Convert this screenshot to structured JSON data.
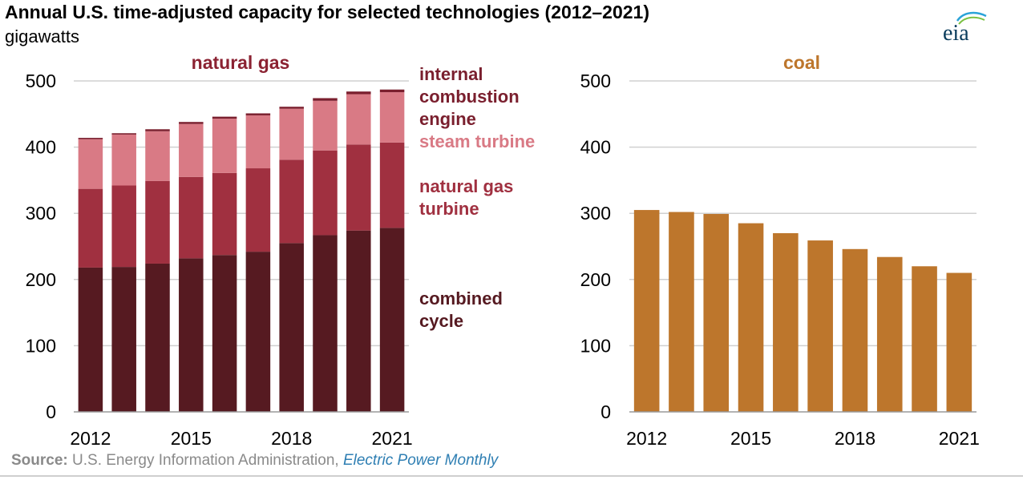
{
  "header": {
    "title": "Annual U.S. time-adjusted capacity for selected technologies (2012–2021)",
    "units": "gigawatts",
    "logo_text": "eia"
  },
  "footer": {
    "source_label": "Source:",
    "source_org": "U.S. Energy Information Administration,",
    "source_pub": "Electric Power Monthly"
  },
  "colors": {
    "combined_cycle": "#561a21",
    "gas_turbine": "#a03040",
    "steam_turbine": "#d97a85",
    "internal_combustion": "#7a1f2e",
    "coal": "#bd762c",
    "gas_title": "#8b2232",
    "coal_title": "#bd762c",
    "gridline": "#d0d0d0"
  },
  "chart_data": [
    {
      "type": "bar",
      "stacked": true,
      "title": "natural gas",
      "categories": [
        "2012",
        "2013",
        "2014",
        "2015",
        "2016",
        "2017",
        "2018",
        "2019",
        "2020",
        "2021"
      ],
      "tick_labels": [
        "2012",
        "2015",
        "2018",
        "2021"
      ],
      "ylim": [
        0,
        500
      ],
      "yticks": [
        0,
        100,
        200,
        300,
        400,
        500
      ],
      "grid": true,
      "legend": "right",
      "series": [
        {
          "name": "combined cycle",
          "legend_lines": [
            "combined",
            "cycle"
          ],
          "values": [
            218,
            219,
            224,
            232,
            237,
            242,
            255,
            267,
            274,
            278
          ]
        },
        {
          "name": "natural gas turbine",
          "legend_lines": [
            "natural gas",
            "turbine"
          ],
          "values": [
            119,
            123,
            125,
            123,
            124,
            126,
            126,
            128,
            130,
            129
          ]
        },
        {
          "name": "steam turbine",
          "legend_lines": [
            "steam turbine"
          ],
          "values": [
            75,
            77,
            75,
            80,
            82,
            80,
            77,
            75,
            76,
            76
          ]
        },
        {
          "name": "internal combustion engine",
          "legend_lines": [
            "internal",
            "combustion",
            "engine"
          ],
          "values": [
            2,
            2,
            3,
            3,
            3,
            3,
            3,
            4,
            4,
            4
          ]
        }
      ]
    },
    {
      "type": "bar",
      "title": "coal",
      "categories": [
        "2012",
        "2013",
        "2014",
        "2015",
        "2016",
        "2017",
        "2018",
        "2019",
        "2020",
        "2021"
      ],
      "tick_labels": [
        "2012",
        "2015",
        "2018",
        "2021"
      ],
      "ylim": [
        0,
        500
      ],
      "yticks": [
        0,
        100,
        200,
        300,
        400,
        500
      ],
      "grid": true,
      "series": [
        {
          "name": "coal",
          "values": [
            305,
            302,
            299,
            285,
            270,
            259,
            246,
            234,
            220,
            210
          ]
        }
      ]
    }
  ]
}
